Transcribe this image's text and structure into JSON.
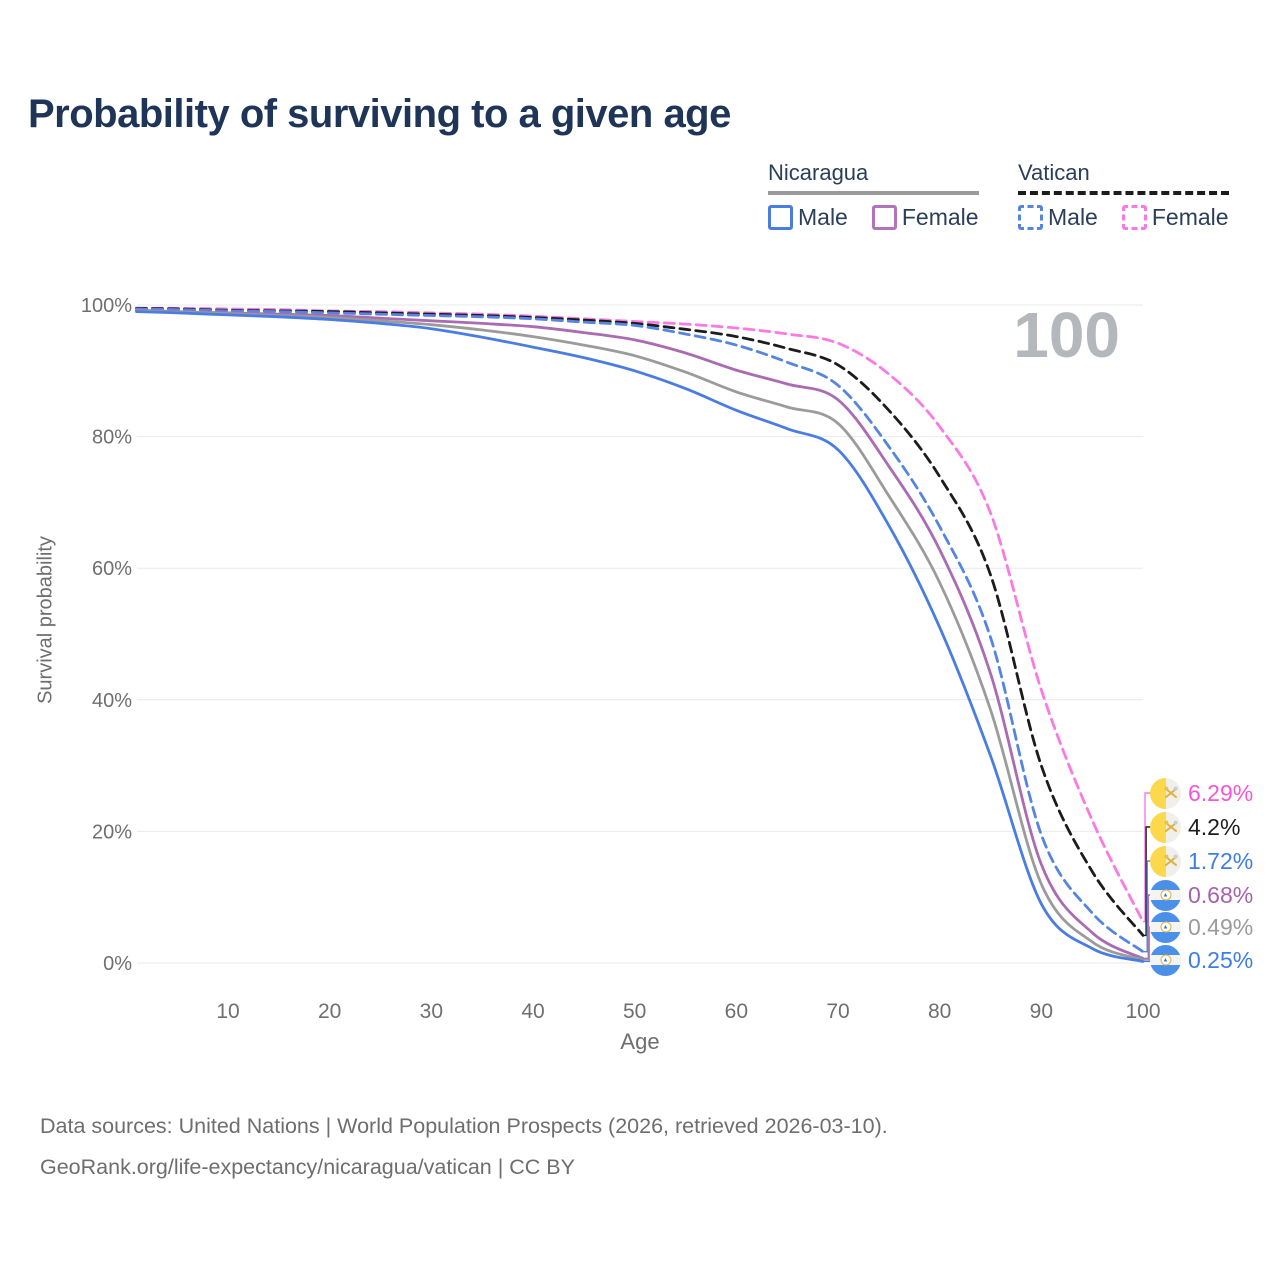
{
  "title": "Probability of surviving to a given age",
  "legend": {
    "groups": [
      {
        "name": "Nicaragua",
        "line_style": "solid",
        "swatch_color": "#9b9b9b",
        "items": [
          {
            "label": "Male",
            "color": "#4a7de2"
          },
          {
            "label": "Female",
            "color": "#b274ba"
          }
        ]
      },
      {
        "name": "Vatican",
        "line_style": "dashed",
        "swatch_color": "#1c1c1c",
        "items": [
          {
            "label": "Male",
            "color": "#5585e0"
          },
          {
            "label": "Female",
            "color": "#fa7ae4"
          }
        ]
      }
    ]
  },
  "chart_data": {
    "type": "line",
    "title": "Probability of surviving to a given age",
    "xlabel": "Age",
    "ylabel": "Survival probability",
    "annotation": "100",
    "xlim": [
      0,
      100
    ],
    "ylim": [
      0,
      100
    ],
    "grid": true,
    "x_ticks": [
      10,
      20,
      30,
      40,
      50,
      60,
      70,
      80,
      90,
      100
    ],
    "y_ticks": [
      "0%",
      "20%",
      "40%",
      "60%",
      "80%",
      "100%"
    ],
    "y_tick_values": [
      0,
      20,
      40,
      60,
      80,
      100
    ],
    "x": [
      1,
      5,
      10,
      15,
      20,
      25,
      30,
      35,
      40,
      45,
      50,
      55,
      60,
      65,
      70,
      75,
      80,
      85,
      90,
      95,
      100
    ],
    "series": [
      {
        "name": "Vatican Female",
        "country": "Vatican",
        "sex": "Female",
        "color": "#fa7ae4",
        "dash": true,
        "end_label": "6.29%",
        "values": [
          99.5,
          99.5,
          99.4,
          99.3,
          99.1,
          99.0,
          98.8,
          98.6,
          98.3,
          97.9,
          97.5,
          97.1,
          96.5,
          95.6,
          94.2,
          89.5,
          81.5,
          68.4,
          41.5,
          21.7,
          6.29
        ]
      },
      {
        "name": "Vatican",
        "country": "Vatican",
        "sex": "Both",
        "color": "#1c1c1c",
        "dash": true,
        "end_label": "4.2%",
        "values": [
          99.5,
          99.4,
          99.2,
          99.1,
          99.0,
          98.8,
          98.6,
          98.4,
          98.1,
          97.7,
          97.2,
          96.3,
          95.2,
          93.4,
          90.9,
          84.0,
          73.9,
          59.0,
          30.0,
          13.9,
          4.2
        ]
      },
      {
        "name": "Vatican Male",
        "country": "Vatican",
        "sex": "Male",
        "color": "#5585e0",
        "dash": true,
        "end_label": "1.72%",
        "values": [
          99.4,
          99.3,
          99.1,
          99.0,
          98.8,
          98.6,
          98.4,
          98.2,
          97.9,
          97.4,
          96.9,
          95.6,
          93.9,
          91.3,
          87.8,
          78.5,
          66.3,
          49.5,
          19.5,
          7.6,
          1.72
        ]
      },
      {
        "name": "Nicaragua Female",
        "country": "Nicaragua",
        "sex": "Female",
        "color": "#ab6bb3",
        "dash": false,
        "end_label": "0.68%",
        "values": [
          99.2,
          99.0,
          98.8,
          98.6,
          98.4,
          98.0,
          97.6,
          97.2,
          96.7,
          95.8,
          94.7,
          92.7,
          90.1,
          88.0,
          85.6,
          75.5,
          62.8,
          44.0,
          15.0,
          4.6,
          0.68
        ]
      },
      {
        "name": "Nicaragua",
        "country": "Nicaragua",
        "sex": "Both",
        "color": "#9b9b9b",
        "dash": false,
        "end_label": "0.49%",
        "values": [
          99.1,
          98.9,
          98.7,
          98.4,
          98.1,
          97.6,
          97.0,
          96.2,
          95.2,
          93.9,
          92.3,
          89.8,
          86.8,
          84.5,
          82.0,
          71.0,
          57.8,
          38.5,
          12.0,
          3.2,
          0.49
        ]
      },
      {
        "name": "Nicaragua Male",
        "country": "Nicaragua",
        "sex": "Male",
        "color": "#4a7de2",
        "dash": false,
        "end_label": "0.25%",
        "values": [
          99.0,
          98.8,
          98.5,
          98.2,
          97.8,
          97.2,
          96.4,
          95.1,
          93.6,
          92.0,
          90.0,
          87.3,
          84.0,
          81.2,
          78.0,
          66.5,
          51.0,
          31.5,
          9.0,
          2.2,
          0.25
        ]
      }
    ]
  },
  "end_labels": [
    {
      "value": "6.29%",
      "color": "#f456d6",
      "flag": "vatican"
    },
    {
      "value": "4.2%",
      "color": "#1d1d1d",
      "flag": "vatican"
    },
    {
      "value": "1.72%",
      "color": "#3e7de9",
      "flag": "vatican"
    },
    {
      "value": "0.68%",
      "color": "#a561ae",
      "flag": "nicaragua"
    },
    {
      "value": "0.49%",
      "color": "#9b9b9b",
      "flag": "nicaragua"
    },
    {
      "value": "0.25%",
      "color": "#3e7de9",
      "flag": "nicaragua"
    }
  ],
  "footer": {
    "line1": "Data sources: United Nations | World Population Prospects (2026, retrieved 2026-03-10).",
    "line2": "GeoRank.org/life-expectancy/nicaragua/vatican | CC BY"
  }
}
